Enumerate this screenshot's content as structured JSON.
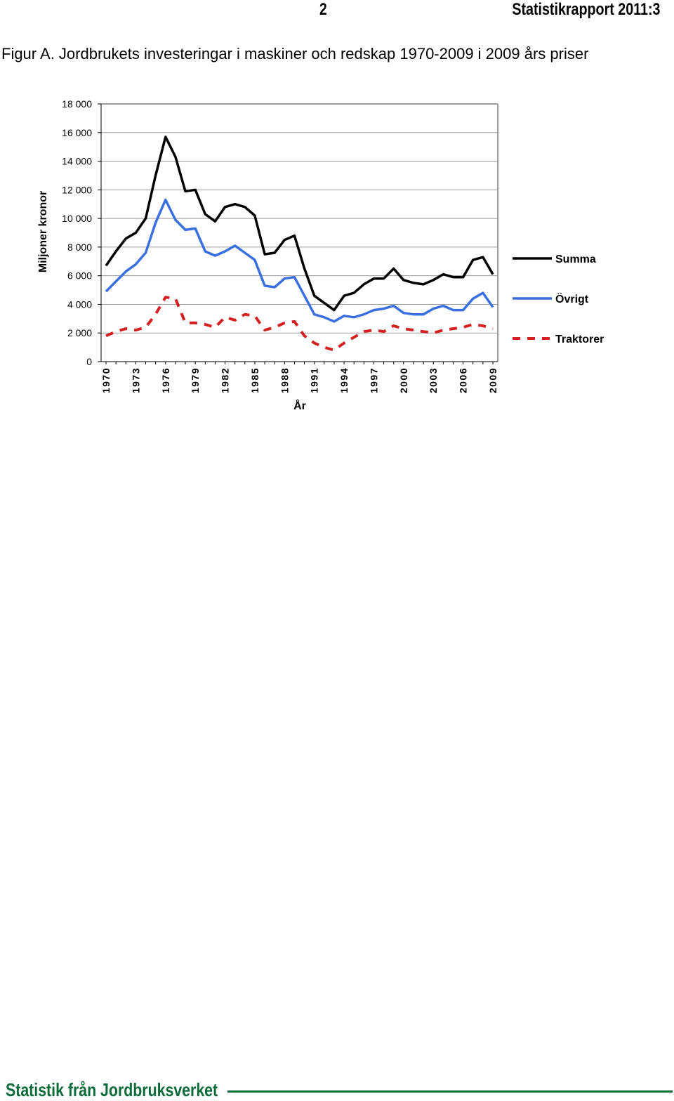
{
  "header": {
    "page_number": "2",
    "report_title": "Statistikrapport 2011:3"
  },
  "figure": {
    "caption": "Figur A. Jordbrukets investeringar i maskiner och redskap 1970-2009 i 2009 års priser"
  },
  "chart_data": {
    "type": "line",
    "title": "",
    "xlabel": "År",
    "ylabel": "Miljoner kronor",
    "ylim": [
      0,
      18000
    ],
    "yticks": [
      0,
      2000,
      4000,
      6000,
      8000,
      10000,
      12000,
      14000,
      16000,
      18000
    ],
    "ytick_labels": [
      "0",
      "2 000",
      "4 000",
      "6 000",
      "8 000",
      "10 000",
      "12 000",
      "14 000",
      "16 000",
      "18 000"
    ],
    "x": [
      1970,
      1971,
      1972,
      1973,
      1974,
      1975,
      1976,
      1977,
      1978,
      1979,
      1980,
      1981,
      1982,
      1983,
      1984,
      1985,
      1986,
      1987,
      1988,
      1989,
      1990,
      1991,
      1992,
      1993,
      1994,
      1995,
      1996,
      1997,
      1998,
      1999,
      2000,
      2001,
      2002,
      2003,
      2004,
      2005,
      2006,
      2007,
      2008,
      2009
    ],
    "xtick_labels": [
      "1970",
      "1973",
      "1976",
      "1979",
      "1982",
      "1985",
      "1988",
      "1991",
      "1994",
      "1997",
      "2000",
      "2003",
      "2006",
      "2009"
    ],
    "grid": "horizontal",
    "legend_position": "right",
    "series": [
      {
        "name": "Summa",
        "color": "#000000",
        "style": "solid",
        "values": [
          6700,
          7700,
          8600,
          9000,
          10000,
          13000,
          15700,
          14300,
          11900,
          12000,
          10300,
          9800,
          10800,
          11000,
          10800,
          10200,
          7500,
          7600,
          8500,
          8800,
          6500,
          4600,
          4100,
          3600,
          4600,
          4800,
          5400,
          5800,
          5800,
          6500,
          5700,
          5500,
          5400,
          5700,
          6100,
          5900,
          5900,
          7100,
          7300,
          6100
        ]
      },
      {
        "name": "Övrigt",
        "color": "#3a6fe0",
        "style": "solid",
        "values": [
          4900,
          5600,
          6300,
          6800,
          7600,
          9700,
          11300,
          9900,
          9200,
          9300,
          7700,
          7400,
          7700,
          8100,
          7600,
          7100,
          5300,
          5200,
          5800,
          5900,
          4600,
          3300,
          3100,
          2800,
          3200,
          3100,
          3300,
          3600,
          3700,
          3900,
          3400,
          3300,
          3300,
          3700,
          3900,
          3600,
          3600,
          4400,
          4800,
          3800
        ]
      },
      {
        "name": "Traktorer",
        "color": "#d42222",
        "style": "dashed",
        "values": [
          1800,
          2100,
          2300,
          2200,
          2400,
          3300,
          4500,
          4400,
          2700,
          2700,
          2600,
          2400,
          3100,
          2900,
          3300,
          3200,
          2200,
          2400,
          2700,
          2800,
          1800,
          1300,
          1000,
          800,
          1300,
          1700,
          2100,
          2200,
          2100,
          2500,
          2300,
          2200,
          2100,
          2000,
          2200,
          2300,
          2400,
          2600,
          2500,
          2300
        ]
      }
    ]
  },
  "footer": {
    "text": "Statistik från Jordbruksverket"
  }
}
